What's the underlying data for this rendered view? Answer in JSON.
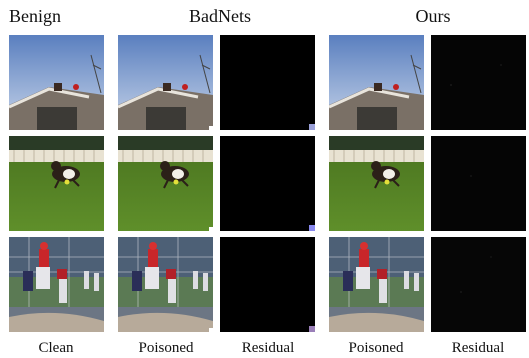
{
  "header": {
    "benign": "Benign",
    "badnets": "BadNets",
    "ours": "Ours"
  },
  "captions": {
    "clean": "Clean",
    "badnets_poisoned": "Poisoned",
    "badnets_residual": "Residual",
    "ours_poisoned": "Poisoned",
    "ours_residual": "Residual"
  },
  "rows": [
    {
      "scene": "rooftop-with-bird-icon",
      "trigger_color": "#9aa0d8"
    },
    {
      "scene": "dog-on-grass-icon",
      "trigger_color": "#8888ee"
    },
    {
      "scene": "baseball-players-icon",
      "trigger_color": "#9a7fb8"
    }
  ]
}
